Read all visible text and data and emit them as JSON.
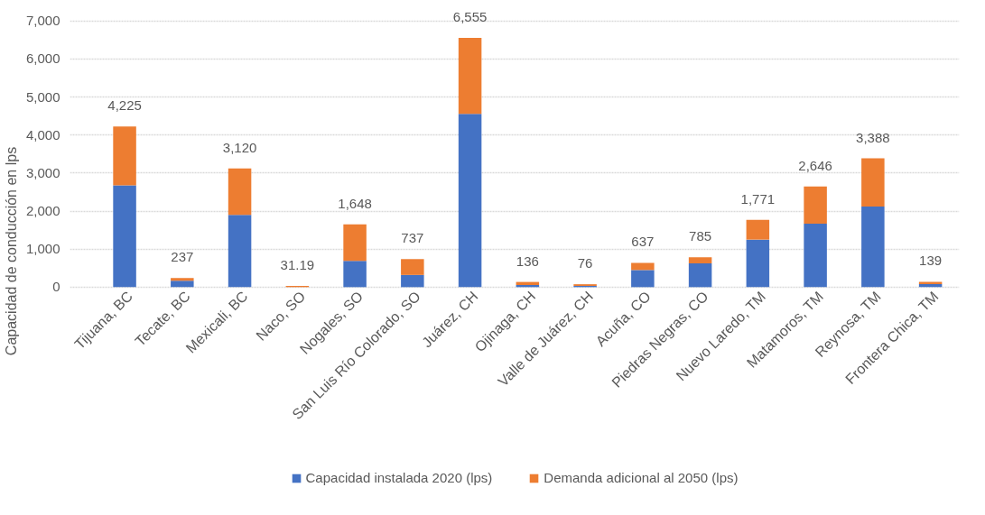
{
  "chart_data": {
    "type": "bar",
    "stacked": true,
    "ylabel": "Capacidad de conducción en lps",
    "categories": [
      "Tijuana, BC",
      "Tecate, BC",
      "Mexicali, BC",
      "Naco, SO",
      "Nogales, SO",
      "San Luis Río Colorado, SO",
      "Juárez, CH",
      "Ojinaga, CH",
      "Valle de Juárez, CH",
      "Acuña, CO",
      "Piedras Negras, CO",
      "Nuevo Laredo, TM",
      "Matamoros, TM",
      "Reynosa, TM",
      "Frontera Chica, TM"
    ],
    "series": [
      {
        "name": "Capacidad instalada 2020 (lps)",
        "color": "#4472c4",
        "values": [
          2675,
          170,
          1900,
          0,
          690,
          320,
          4555,
          55,
          32,
          450,
          625,
          1250,
          1670,
          2120,
          80
        ]
      },
      {
        "name": "Demanda adicional al 2050 (lps)",
        "color": "#ed7d31",
        "values": [
          1550,
          67,
          1220,
          31.19,
          958,
          417,
          2000,
          81,
          44,
          187,
          160,
          521,
          976,
          1268,
          59
        ]
      }
    ],
    "totals": [
      "4,225",
      "237",
      "3,120",
      "31.19",
      "1,648",
      "737",
      "6,555",
      "136",
      "76",
      "637",
      "785",
      "1,771",
      "2,646",
      "3,388",
      "139"
    ],
    "ylim": [
      0,
      7000
    ],
    "yticks": [
      {
        "value": 0,
        "label": "0"
      },
      {
        "value": 1000,
        "label": "1,000"
      },
      {
        "value": 2000,
        "label": "2,000"
      },
      {
        "value": 3000,
        "label": "3,000"
      },
      {
        "value": 4000,
        "label": "4,000"
      },
      {
        "value": 5000,
        "label": "5,000"
      },
      {
        "value": 6000,
        "label": "6,000"
      },
      {
        "value": 7000,
        "label": "7,000"
      }
    ],
    "grid": "y",
    "legend": "bottom"
  }
}
